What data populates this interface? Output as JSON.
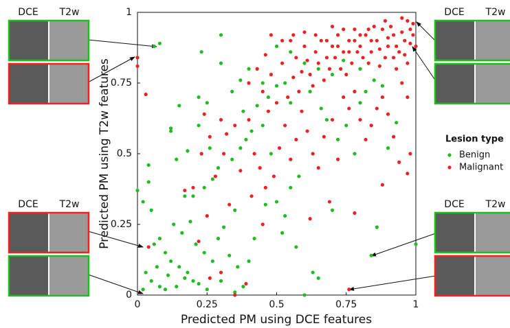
{
  "chart_data": {
    "type": "scatter",
    "xlabel": "Predicted PM using DCE features",
    "ylabel": "Predicted PM using T2w features",
    "xlim": [
      0,
      1
    ],
    "ylim": [
      0,
      1
    ],
    "xticks": [
      0,
      0.25,
      0.5,
      0.75,
      1
    ],
    "yticks": [
      0,
      0.25,
      0.5,
      0.75,
      1
    ],
    "legend_title": "Lesion type",
    "legend": "right",
    "series": [
      {
        "name": "Benign",
        "color": "#22bb22",
        "points": [
          [
            0.08,
            0.89
          ],
          [
            0.06,
            0.88
          ],
          [
            0.3,
            0.92
          ],
          [
            0.22,
            0.7
          ],
          [
            0.23,
            0.86
          ],
          [
            0.3,
            0.82
          ],
          [
            0.25,
            0.68
          ],
          [
            0.15,
            0.67
          ],
          [
            0.12,
            0.58
          ],
          [
            0.12,
            0.59
          ],
          [
            0.04,
            0.46
          ],
          [
            0.04,
            0.4
          ],
          [
            0,
            0.37
          ],
          [
            0.02,
            0.33
          ],
          [
            0.05,
            0.3
          ],
          [
            0.08,
            0.2
          ],
          [
            0.06,
            0.18
          ],
          [
            0.1,
            0.15
          ],
          [
            0.12,
            0.12
          ],
          [
            0.15,
            0.1
          ],
          [
            0.18,
            0.08
          ],
          [
            0.2,
            0.05
          ],
          [
            0.05,
            0.05
          ],
          [
            0.08,
            0.03
          ],
          [
            0.1,
            0.02
          ],
          [
            0.14,
            0.03
          ],
          [
            0.17,
            0.06
          ],
          [
            0.22,
            0.04
          ],
          [
            0.25,
            0.02
          ],
          [
            0.3,
            0.05
          ],
          [
            0.35,
            0.01
          ],
          [
            0.38,
            0.03
          ],
          [
            0.03,
            0.08
          ],
          [
            0.02,
            0.02
          ],
          [
            0.07,
            0.1
          ],
          [
            0.11,
            0.07
          ],
          [
            0.13,
            0.25
          ],
          [
            0.16,
            0.22
          ],
          [
            0.19,
            0.26
          ],
          [
            0.21,
            0.18
          ],
          [
            0.24,
            0.15
          ],
          [
            0.27,
            0.12
          ],
          [
            0.29,
            0.2
          ],
          [
            0.31,
            0.24
          ],
          [
            0.33,
            0.14
          ],
          [
            0.36,
            0.1
          ],
          [
            0.4,
            0.12
          ],
          [
            0.42,
            0.2
          ],
          [
            0.17,
            0.35
          ],
          [
            0.2,
            0.35
          ],
          [
            0.24,
            0.38
          ],
          [
            0.27,
            0.41
          ],
          [
            0.29,
            0.45
          ],
          [
            0.34,
            0.48
          ],
          [
            0.37,
            0.52
          ],
          [
            0.39,
            0.55
          ],
          [
            0.41,
            0.58
          ],
          [
            0.45,
            0.6
          ],
          [
            0.48,
            0.5
          ],
          [
            0.5,
            0.33
          ],
          [
            0.52,
            0.22
          ],
          [
            0.55,
            0.38
          ],
          [
            0.58,
            0.42
          ],
          [
            0.6,
            0
          ],
          [
            0.63,
            0.08
          ],
          [
            0.65,
            0.06
          ],
          [
            0.7,
            0.3
          ],
          [
            0.72,
            0.55
          ],
          [
            0.75,
            0.6
          ],
          [
            0.78,
            0.5
          ],
          [
            0.8,
            0.68
          ],
          [
            0.82,
            0.72
          ],
          [
            0.84,
            0.14
          ],
          [
            0.86,
            0.24
          ],
          [
            0.9,
            0.52
          ],
          [
            0.93,
            0.61
          ],
          [
            1,
            0.18
          ],
          [
            0.53,
            0.75
          ],
          [
            0.5,
            0.74
          ],
          [
            0.45,
            0.75
          ],
          [
            0.4,
            0.8
          ],
          [
            0.37,
            0.76
          ],
          [
            0.34,
            0.72
          ],
          [
            0.38,
            0.65
          ],
          [
            0.43,
            0.67
          ],
          [
            0.47,
            0.7
          ],
          [
            0.55,
            0.68
          ],
          [
            0.62,
            0.72
          ],
          [
            0.66,
            0.66
          ],
          [
            0.7,
            0.78
          ],
          [
            0.74,
            0.83
          ],
          [
            0.5,
            0.88
          ],
          [
            0.55,
            0.86
          ],
          [
            0.6,
            0.82
          ],
          [
            0.65,
            0.8
          ],
          [
            0.85,
            0.76
          ],
          [
            0.88,
            0.74
          ],
          [
            0.8,
            0.8
          ],
          [
            0.68,
            0.62
          ],
          [
            0.26,
            0.52
          ],
          [
            0.22,
            0.6
          ],
          [
            0.18,
            0.51
          ],
          [
            0.14,
            0.48
          ],
          [
            0.53,
            0.28
          ],
          [
            0.57,
            0.17
          ],
          [
            0.46,
            0.32
          ],
          [
            0.35,
            0.3
          ]
        ]
      },
      {
        "name": "Malignant",
        "color": "#ee2222",
        "points": [
          [
            0,
            0.84
          ],
          [
            0,
            0.81
          ],
          [
            0.03,
            0.71
          ],
          [
            0.04,
            0.17
          ],
          [
            0.76,
            0.02
          ],
          [
            0.35,
            0
          ],
          [
            0.39,
            0.04
          ],
          [
            0.26,
            0.06
          ],
          [
            0.3,
            0.08
          ],
          [
            0.22,
            0.19
          ],
          [
            0.17,
            0.37
          ],
          [
            0.2,
            0.38
          ],
          [
            0.25,
            0.28
          ],
          [
            0.33,
            0.32
          ],
          [
            0.28,
            0.42
          ],
          [
            0.31,
            0.5
          ],
          [
            0.26,
            0.56
          ],
          [
            0.23,
            0.5
          ],
          [
            0.24,
            0.64
          ],
          [
            0.3,
            0.62
          ],
          [
            0.32,
            0.57
          ],
          [
            0.35,
            0.6
          ],
          [
            0.4,
            0.62
          ],
          [
            0.42,
            0.5
          ],
          [
            0.44,
            0.45
          ],
          [
            0.46,
            0.38
          ],
          [
            0.49,
            0.42
          ],
          [
            0.51,
            0.52
          ],
          [
            0.53,
            0.6
          ],
          [
            0.55,
            0.48
          ],
          [
            0.57,
            0.55
          ],
          [
            0.59,
            0.65
          ],
          [
            0.61,
            0.58
          ],
          [
            0.63,
            0.5
          ],
          [
            0.65,
            0.45
          ],
          [
            0.67,
            0.56
          ],
          [
            0.7,
            0.62
          ],
          [
            0.72,
            0.48
          ],
          [
            0.74,
            0.7
          ],
          [
            0.76,
            0.66
          ],
          [
            0.78,
            0.72
          ],
          [
            0.8,
            0.62
          ],
          [
            0.82,
            0.55
          ],
          [
            0.84,
            0.6
          ],
          [
            0.86,
            0.66
          ],
          [
            0.88,
            0.7
          ],
          [
            0.9,
            0.64
          ],
          [
            0.92,
            0.56
          ],
          [
            0.95,
            0.75
          ],
          [
            0.97,
            0.7
          ],
          [
            0.4,
            0.75
          ],
          [
            0.43,
            0.8
          ],
          [
            0.46,
            0.85
          ],
          [
            0.48,
            0.78
          ],
          [
            0.52,
            0.82
          ],
          [
            0.55,
            0.9
          ],
          [
            0.57,
            0.84
          ],
          [
            0.6,
            0.88
          ],
          [
            0.62,
            0.78
          ],
          [
            0.64,
            0.86
          ],
          [
            0.66,
            0.9
          ],
          [
            0.68,
            0.84
          ],
          [
            0.7,
            0.88
          ],
          [
            0.72,
            0.92
          ],
          [
            0.74,
            0.86
          ],
          [
            0.76,
            0.9
          ],
          [
            0.78,
            0.94
          ],
          [
            0.8,
            0.88
          ],
          [
            0.82,
            0.92
          ],
          [
            0.84,
            0.86
          ],
          [
            0.86,
            0.9
          ],
          [
            0.88,
            0.94
          ],
          [
            0.9,
            0.88
          ],
          [
            0.92,
            0.92
          ],
          [
            0.94,
            0.86
          ],
          [
            0.96,
            0.9
          ],
          [
            0.98,
            0.94
          ],
          [
            1,
            0.88
          ],
          [
            0.99,
            0.96
          ],
          [
            0.97,
            0.82
          ],
          [
            0.95,
            0.93
          ],
          [
            0.93,
            0.8
          ],
          [
            0.91,
            0.95
          ],
          [
            0.89,
            0.84
          ],
          [
            0.87,
            0.81
          ],
          [
            0.85,
            0.95
          ],
          [
            0.83,
            0.82
          ],
          [
            0.81,
            0.84
          ],
          [
            0.79,
            0.86
          ],
          [
            0.77,
            0.82
          ],
          [
            0.75,
            0.78
          ],
          [
            0.73,
            0.8
          ],
          [
            0.71,
            0.84
          ],
          [
            0.69,
            0.8
          ],
          [
            0.67,
            0.76
          ],
          [
            0.65,
            0.82
          ],
          [
            0.63,
            0.74
          ],
          [
            0.61,
            0.83
          ],
          [
            0.59,
            0.79
          ],
          [
            0.58,
            0.72
          ],
          [
            0.56,
            0.77
          ],
          [
            0.54,
            0.7
          ],
          [
            0.5,
            0.68
          ],
          [
            0.47,
            0.65
          ],
          [
            0.45,
            0.72
          ],
          [
            0.93,
            0.88
          ],
          [
            0.9,
            0.91
          ],
          [
            0.87,
            0.87
          ],
          [
            0.96,
            0.85
          ],
          [
            0.98,
            0.89
          ],
          [
            0.92,
            0.84
          ],
          [
            0.84,
            0.9
          ],
          [
            0.8,
            0.92
          ],
          [
            0.76,
            0.86
          ],
          [
            0.72,
            0.88
          ],
          [
            0.68,
            0.9
          ],
          [
            0.64,
            0.92
          ],
          [
            0.6,
            0.93
          ],
          [
            0.56,
            0.92
          ],
          [
            0.52,
            0.9
          ],
          [
            0.48,
            0.92
          ],
          [
            0.99,
            0.92
          ],
          [
            0.97,
            0.97
          ],
          [
            0.95,
            0.98
          ],
          [
            0.89,
            0.97
          ],
          [
            0.83,
            0.94
          ],
          [
            0.78,
            0.9
          ],
          [
            0.74,
            0.94
          ],
          [
            0.7,
            0.95
          ],
          [
            0.94,
            0.47
          ],
          [
            0.97,
            0.43
          ],
          [
            0.98,
            0.5
          ],
          [
            0.88,
            0.39
          ],
          [
            0.78,
            0.29
          ],
          [
            0.69,
            0.33
          ],
          [
            0.62,
            0.27
          ],
          [
            0.45,
            0.25
          ],
          [
            0.37,
            0.44
          ],
          [
            0.41,
            0.35
          ]
        ]
      }
    ],
    "image_panels": [
      {
        "labels": [
          "DCE",
          "T2w"
        ],
        "borders": [
          "#22bb22",
          "#ee2222"
        ]
      },
      {
        "labels": [
          "DCE",
          "T2w"
        ],
        "borders": [
          "#22bb22",
          "#22bb22"
        ]
      },
      {
        "labels": [
          "DCE",
          "T2w"
        ],
        "borders": [
          "#ee2222",
          "#22bb22"
        ]
      },
      {
        "labels": [
          "DCE",
          "T2w"
        ],
        "borders": [
          "#22bb22",
          "#ee2222"
        ]
      }
    ]
  }
}
